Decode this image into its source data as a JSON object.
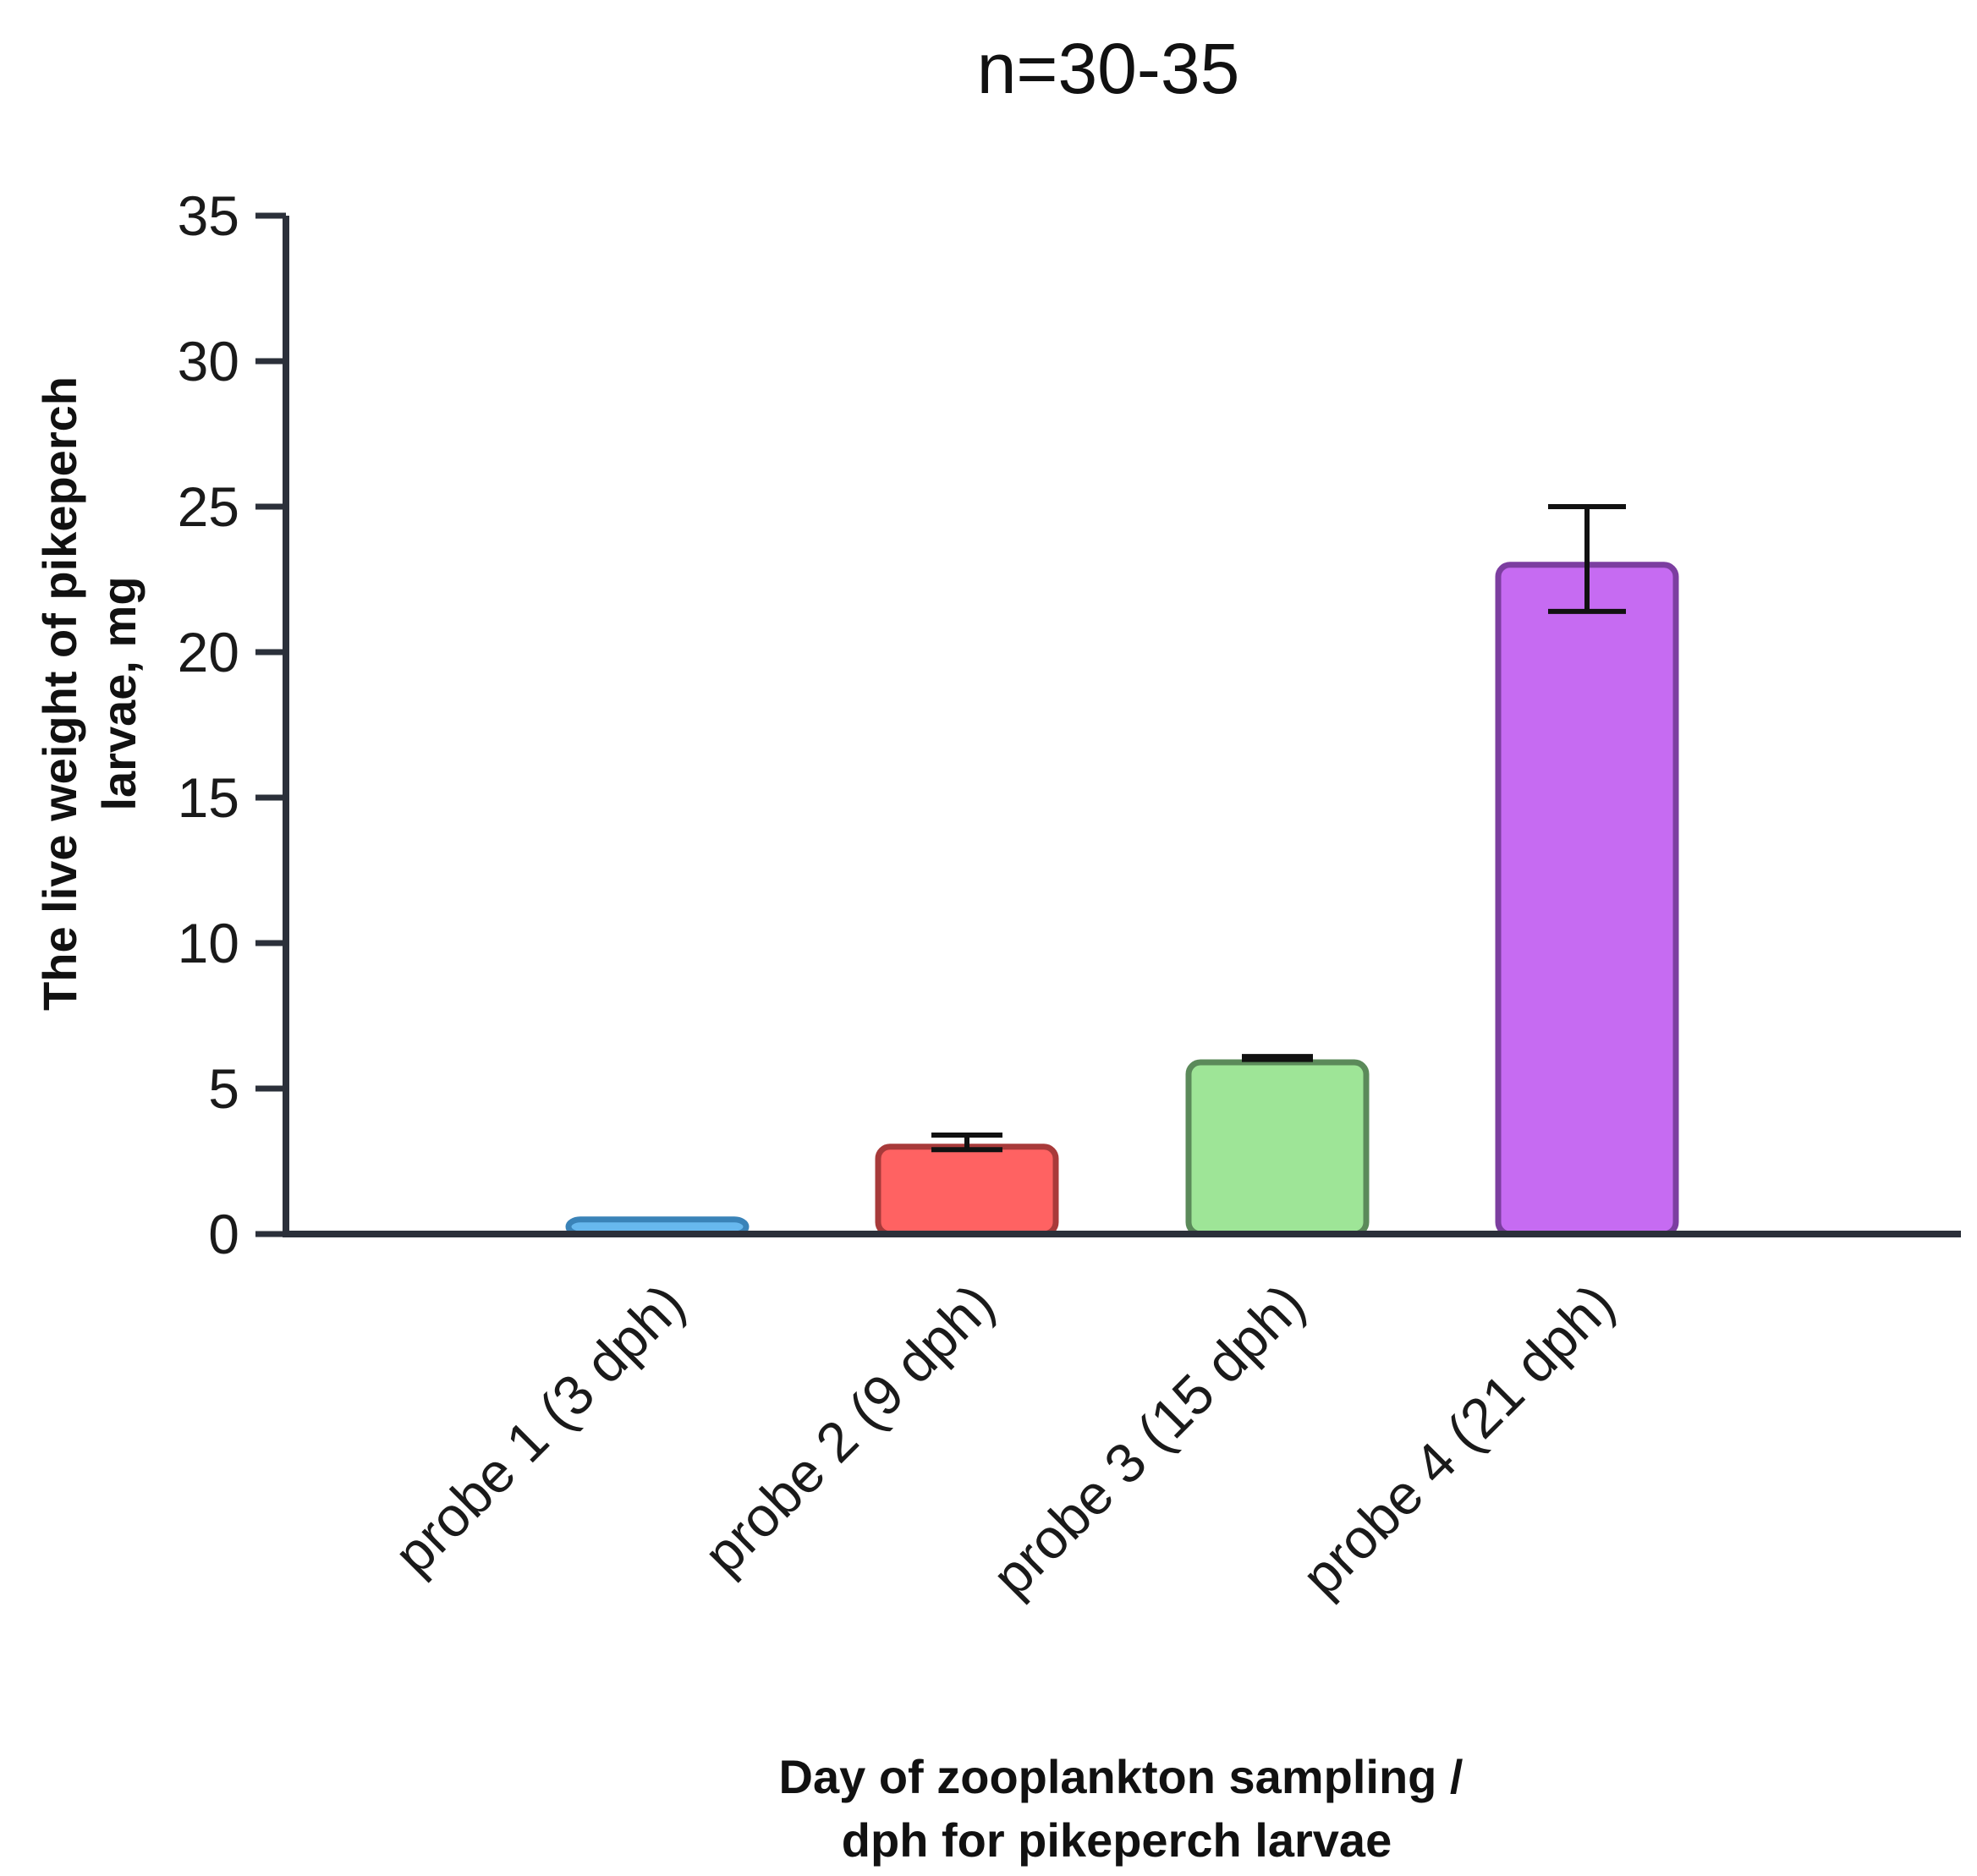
{
  "chart_data": {
    "type": "bar",
    "title": "n=30-35",
    "xlabel": [
      "Day of zooplankton sampling /",
      "dph for pikeperch larvae"
    ],
    "ylabel": [
      "The live weight of pikeperch",
      "larvae, mg"
    ],
    "categories": [
      "probe 1 (3 dph)",
      "probe 2 (9 dph)",
      "probe 3 (15 dph)",
      "probe 4 (21 dph)"
    ],
    "values": [
      0.5,
      3.0,
      5.9,
      23.0
    ],
    "error_low": [
      0.5,
      2.9,
      6.0,
      21.4
    ],
    "error_high": [
      0.5,
      3.4,
      6.1,
      25.0
    ],
    "fill_colors": [
      "#67b8ee",
      "#ff6262",
      "#9ee597",
      "#c66bf2"
    ],
    "stroke_colors": [
      "#3a83b8",
      "#a83a3a",
      "#5b8a5a",
      "#7c3ea0"
    ],
    "ylim": [
      0,
      35
    ],
    "yticks": [
      0,
      5,
      10,
      15,
      20,
      25,
      30,
      35
    ],
    "grid": false,
    "legend": "none"
  }
}
